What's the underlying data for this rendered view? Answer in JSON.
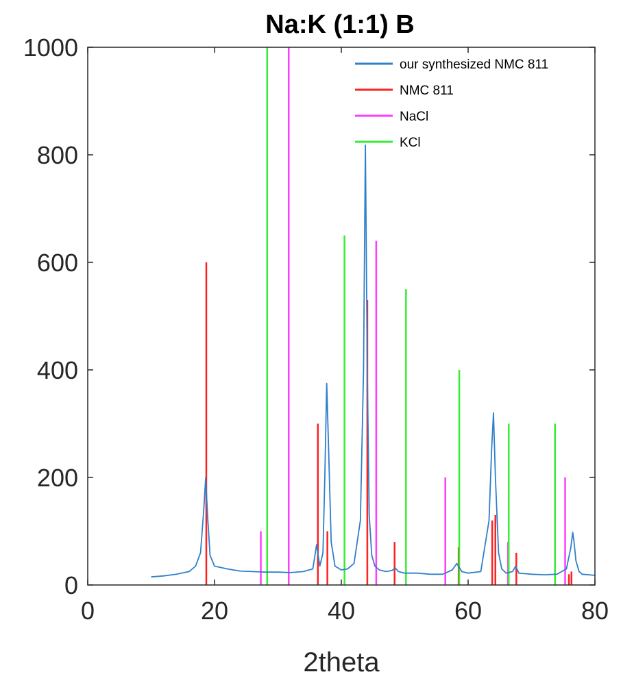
{
  "chart_data": {
    "type": "line",
    "title": "Na:K (1:1) B",
    "xlabel": "2theta",
    "ylabel": "",
    "xlim": [
      0,
      80
    ],
    "ylim": [
      0,
      1000
    ],
    "xticks": [
      0,
      20,
      40,
      60,
      80
    ],
    "yticks": [
      0,
      200,
      400,
      600,
      800,
      1000
    ],
    "xtick_labels": [
      "0",
      "20",
      "40",
      "60",
      "80"
    ],
    "ytick_labels": [
      "0",
      "200",
      "400",
      "600",
      "800",
      "1000"
    ],
    "grid": false,
    "legend_position": "top-right",
    "series": [
      {
        "name": "our synthesized NMC 811",
        "kind": "line",
        "color": "#2f7fc9",
        "x": [
          10,
          12,
          14,
          16,
          17,
          17.8,
          18.3,
          18.6,
          18.9,
          19.3,
          20,
          22,
          24,
          26,
          28,
          30,
          32,
          34,
          35.5,
          36.1,
          36.6,
          37.1,
          37.4,
          37.7,
          38.0,
          38.4,
          39,
          40,
          41,
          42,
          43,
          43.5,
          43.8,
          44.1,
          44.4,
          44.8,
          45.3,
          46,
          47,
          48,
          48.5,
          49,
          50,
          52,
          54,
          56,
          57.5,
          58.2,
          59,
          60,
          62,
          63.3,
          63.7,
          64.0,
          64.3,
          64.8,
          65.3,
          66,
          67,
          67.5,
          68,
          70,
          72,
          74,
          75.5,
          76.2,
          76.5,
          76.7,
          77.0,
          77.5,
          78,
          80
        ],
        "y": [
          15,
          17,
          20,
          25,
          35,
          60,
          140,
          200,
          130,
          55,
          35,
          30,
          26,
          25,
          24,
          24,
          23,
          25,
          30,
          75,
          35,
          60,
          200,
          375,
          250,
          80,
          35,
          28,
          30,
          40,
          120,
          400,
          818,
          400,
          130,
          55,
          35,
          28,
          25,
          27,
          32,
          25,
          22,
          22,
          20,
          20,
          28,
          40,
          25,
          22,
          25,
          120,
          250,
          320,
          200,
          60,
          30,
          22,
          25,
          35,
          22,
          20,
          19,
          20,
          30,
          70,
          98,
          80,
          45,
          25,
          20,
          18
        ]
      },
      {
        "name": "NMC 811",
        "kind": "stick",
        "color": "#ff2020",
        "x": [
          18.7,
          36.3,
          37.8,
          44.1,
          48.4,
          58.5,
          63.8,
          64.3,
          67.6,
          75.9,
          76.3
        ],
        "y": [
          600,
          300,
          100,
          530,
          80,
          70,
          120,
          130,
          60,
          20,
          25
        ]
      },
      {
        "name": "NaCl",
        "kind": "stick",
        "color": "#ff3cff",
        "x": [
          27.3,
          31.7,
          45.5,
          56.4,
          66.3,
          75.3
        ],
        "y": [
          100,
          1000,
          640,
          200,
          80,
          200
        ]
      },
      {
        "name": "KCl",
        "kind": "stick",
        "color": "#33ee33",
        "x": [
          28.3,
          40.5,
          50.2,
          58.6,
          66.4,
          73.7
        ],
        "y": [
          1000,
          650,
          550,
          400,
          300,
          300
        ]
      }
    ]
  }
}
